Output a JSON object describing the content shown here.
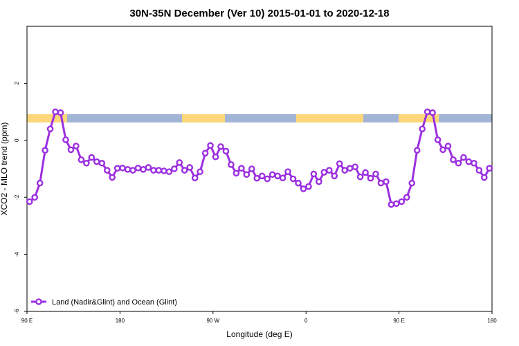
{
  "chart_data": {
    "type": "line",
    "title": "30N-35N December (Ver 10)   2015-01-01 to 2020-12-18",
    "xlabel": "Longitude (deg E)",
    "ylabel": "XCO2 - MLO trend (ppm)",
    "xlim": [
      90,
      540
    ],
    "ylim": [
      -6,
      4
    ],
    "xticks": [
      {
        "value": 90,
        "label": "90 E"
      },
      180,
      {
        "value": 270,
        "label": "90 W"
      },
      {
        "value": 360,
        "label": "0"
      },
      {
        "value": 450,
        "label": "90 E"
      },
      {
        "value": 540,
        "label": "180"
      }
    ],
    "yticks": [
      -6,
      -4,
      -2,
      0,
      2
    ],
    "legend": "bottom-left",
    "x": [
      92.5,
      97.5,
      102.5,
      107.5,
      112.5,
      117.5,
      122.5,
      127.5,
      132.5,
      137.5,
      142.5,
      147.5,
      152.5,
      157.5,
      162.5,
      167.5,
      172.5,
      177.5,
      182.5,
      187.5,
      192.5,
      197.5,
      202.5,
      207.5,
      212.5,
      217.5,
      222.5,
      227.5,
      232.5,
      237.5,
      242.5,
      247.5,
      252.5,
      257.5,
      262.5,
      267.5,
      272.5,
      277.5,
      282.5,
      287.5,
      292.5,
      297.5,
      302.5,
      307.5,
      312.5,
      317.5,
      322.5,
      327.5,
      332.5,
      337.5,
      342.5,
      347.5,
      352.5,
      357.5,
      362.5,
      367.5,
      372.5,
      377.5,
      382.5,
      387.5,
      392.5,
      397.5,
      402.5,
      407.5,
      412.5,
      417.5,
      422.5,
      427.5,
      432.5,
      437.5,
      442.5,
      447.5,
      452.5,
      457.5,
      462.5,
      467.5,
      472.5,
      477.5,
      482.5,
      487.5,
      492.5,
      497.5,
      502.5,
      507.5,
      512.5,
      517.5,
      522.5,
      527.5,
      532.5,
      537.5
    ],
    "series": [
      {
        "name": "Land (Nadir&Glint) and Ocean (Glint)",
        "color": "#9b2fe0",
        "values": [
          -2.15,
          -2.0,
          -1.5,
          -0.35,
          0.4,
          1.0,
          0.97,
          0.02,
          -0.33,
          -0.2,
          -0.68,
          -0.8,
          -0.6,
          -0.75,
          -0.8,
          -1.05,
          -1.3,
          -0.98,
          -0.97,
          -1.02,
          -1.05,
          -0.97,
          -1.02,
          -0.95,
          -1.05,
          -1.05,
          -1.07,
          -1.1,
          -1.0,
          -0.78,
          -1.05,
          -0.95,
          -1.32,
          -1.1,
          -0.45,
          -0.18,
          -0.58,
          -0.22,
          -0.38,
          -0.85,
          -1.15,
          -0.98,
          -1.2,
          -1.0,
          -1.33,
          -1.25,
          -1.35,
          -1.2,
          -1.25,
          -1.32,
          -1.1,
          -1.35,
          -1.5,
          -1.7,
          -1.62,
          -1.18,
          -1.45,
          -1.12,
          -1.05,
          -1.25,
          -0.82,
          -1.05,
          -0.98,
          -0.93,
          -1.28,
          -1.13,
          -1.33,
          -1.18,
          -1.5,
          -1.45,
          -2.25,
          -2.22,
          -2.15,
          -2.0,
          -1.5,
          -0.35,
          0.4,
          1.0,
          0.97,
          0.02,
          -0.33,
          -0.2,
          -0.68,
          -0.8,
          -0.6,
          -0.75,
          -0.8,
          -1.05,
          -1.3,
          -0.98
        ]
      }
    ]
  }
}
